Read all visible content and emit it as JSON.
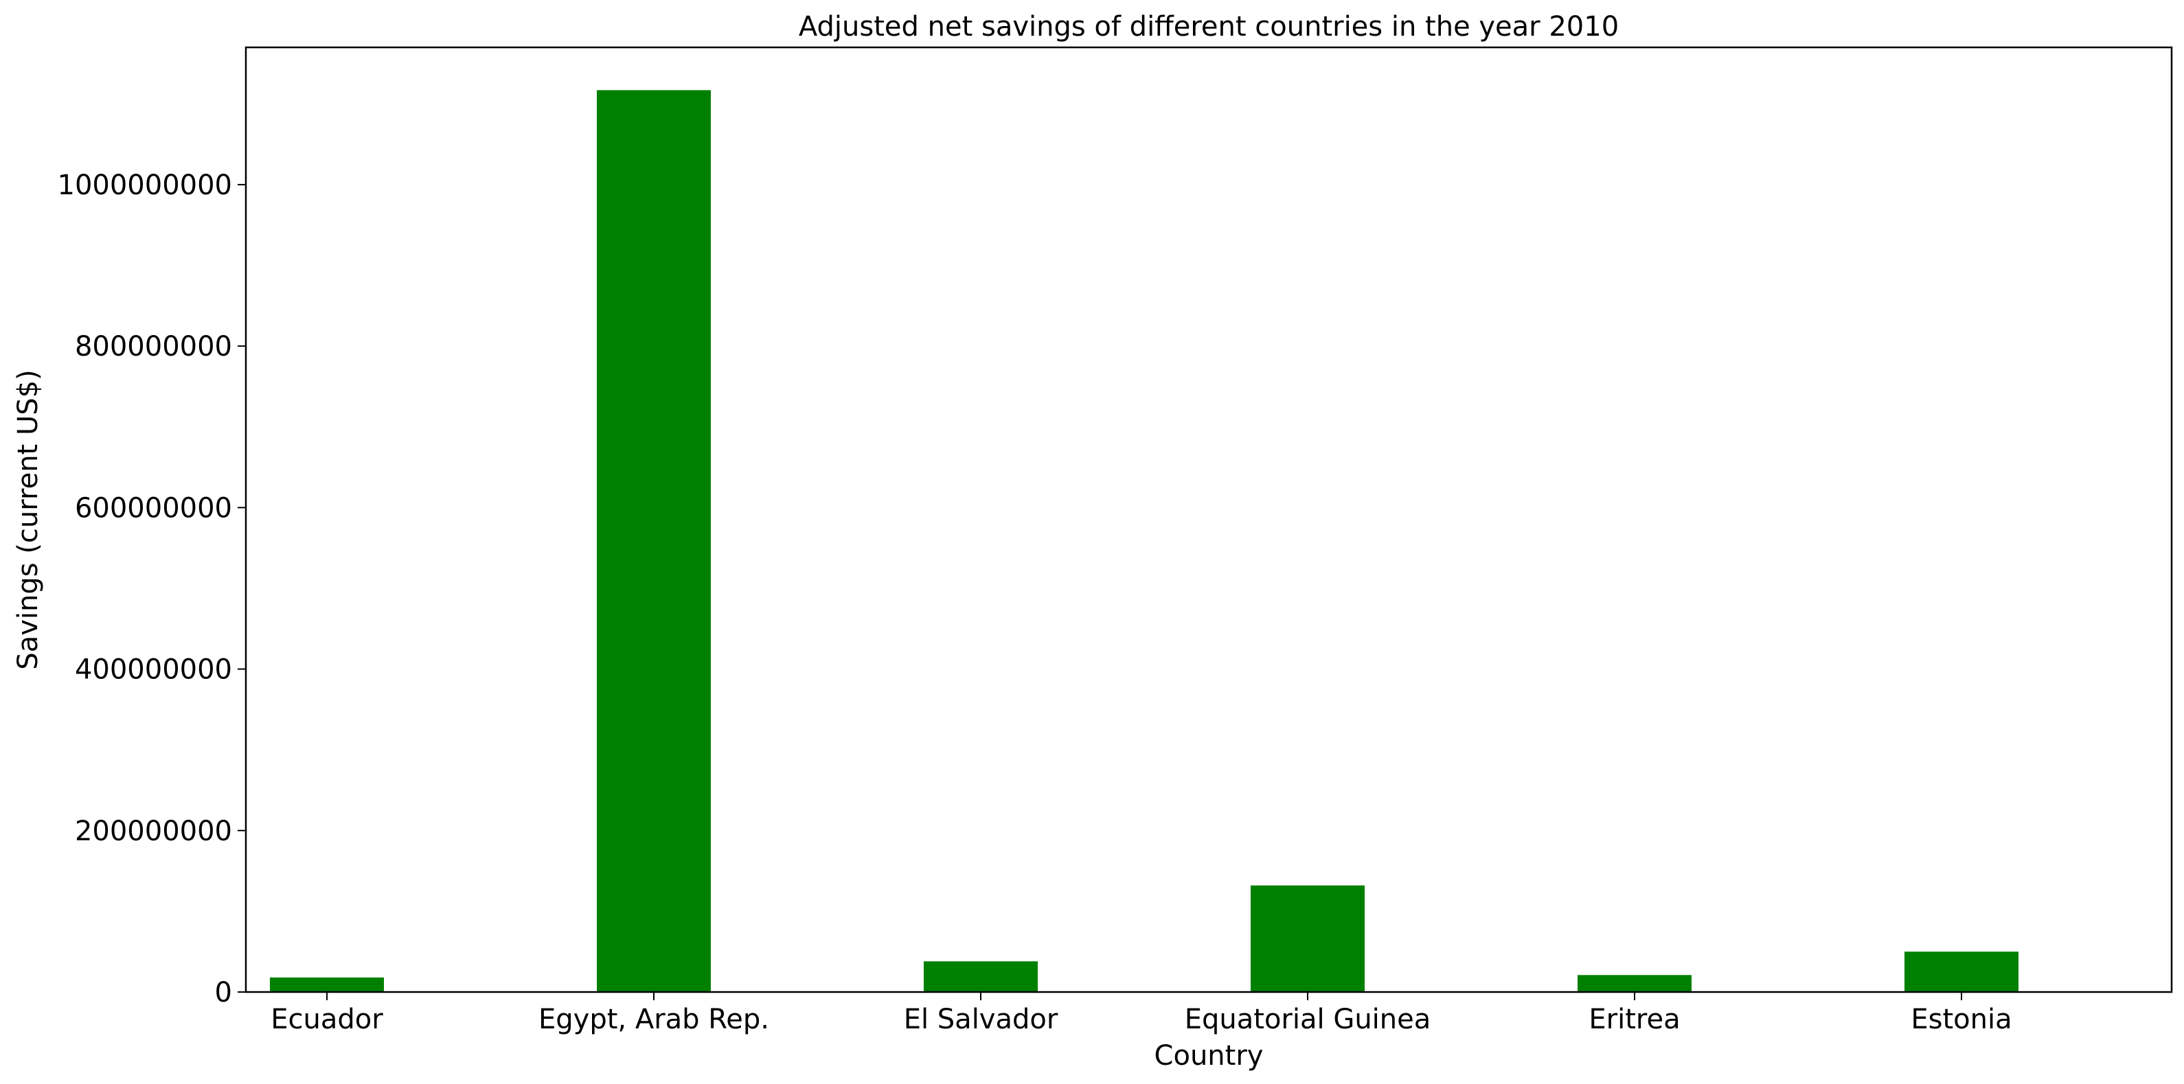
{
  "chart_data": {
    "type": "bar",
    "title": "Adjusted net savings of different countries in the year 2010",
    "xlabel": "Country",
    "ylabel": "Savings (current US$)",
    "categories": [
      "Ecuador",
      "Egypt, Arab Rep.",
      "El Salvador",
      "Equatorial Guinea",
      "Eritrea",
      "Estonia"
    ],
    "values": [
      18000000,
      1117000000,
      38000000,
      132000000,
      21000000,
      50000000
    ],
    "ylim": [
      0,
      1170000000
    ],
    "yticks": [
      0,
      200000000,
      400000000,
      600000000,
      800000000,
      1000000000
    ],
    "ytick_labels": [
      "0",
      "200000000",
      "400000000",
      "600000000",
      "800000000",
      "1000000000"
    ],
    "bar_color": "#008000",
    "grid": false,
    "legend": "none"
  }
}
